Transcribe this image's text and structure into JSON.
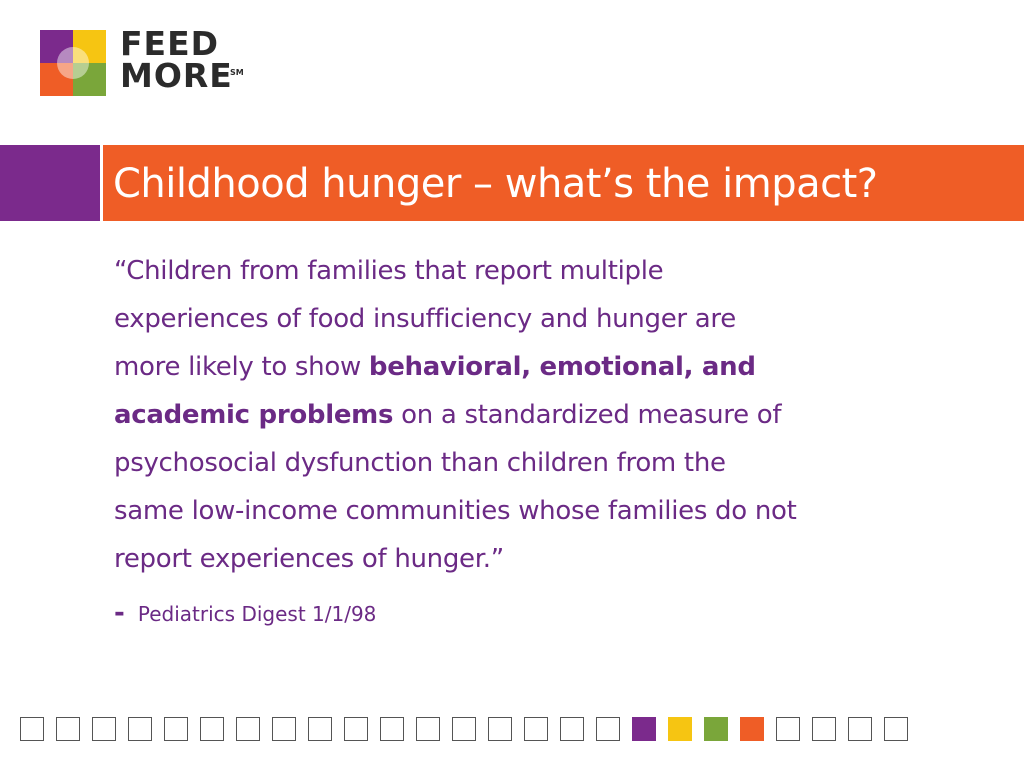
{
  "logo": {
    "line1": "FEED",
    "line2": "MORE",
    "mark": "SM",
    "colors": {
      "purple": "#7b2a8c",
      "yellow": "#f6c512",
      "orange": "#ef5d26",
      "green": "#7aa63a"
    }
  },
  "title": "Childhood hunger – what’s the impact?",
  "quote": {
    "line1": "“Children from families that report multiple",
    "line2": "experiences of food insufficiency and hunger are",
    "line3_pre": "more likely to show ",
    "line3_bold": "behavioral, emotional, and",
    "line4_bold": "academic problems",
    "line4_post": " on a standardized measure of",
    "line5": "psychosocial dysfunction than children from the",
    "line6": "same low-income communities whose families do not",
    "line7": "report experiences of hunger.”"
  },
  "citation": {
    "dash": "-",
    "text": "Pediatrics Digest 1/1/98"
  },
  "colors": {
    "accent_orange": "#ef5d26",
    "accent_purple": "#7b2a8c",
    "text_purple": "#6b2a85"
  },
  "squares": [
    "#ffffff",
    "#ffffff",
    "#ffffff",
    "#ffffff",
    "#ffffff",
    "#ffffff",
    "#ffffff",
    "#ffffff",
    "#ffffff",
    "#ffffff",
    "#ffffff",
    "#ffffff",
    "#ffffff",
    "#ffffff",
    "#ffffff",
    "#ffffff",
    "#ffffff",
    "#7b2a8c",
    "#f6c512",
    "#7aa63a",
    "#ef5d26",
    "#ffffff",
    "#ffffff",
    "#ffffff",
    "#ffffff"
  ]
}
